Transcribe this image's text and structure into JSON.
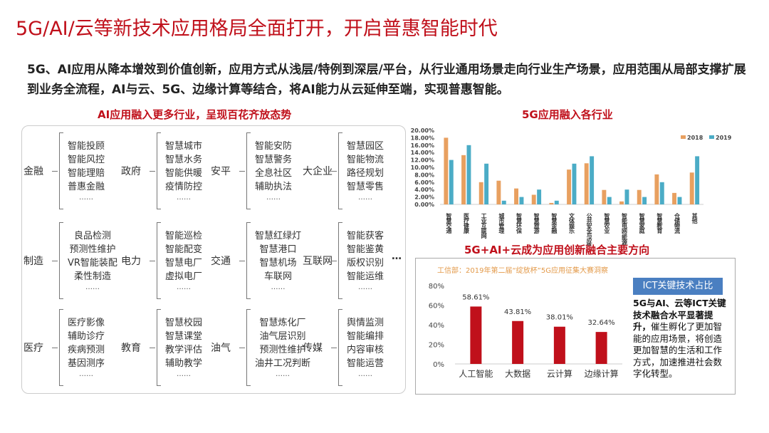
{
  "title": "5G/AI/云等新技术应用格局全面打开，开启普惠智能时代",
  "intro": "5G、AI应用从降本增效到价值创新，应用方式从浅层/特例到深层/平台，从行业通用场景走向行业生产场景，应用范围从局部支撑扩展到业务全流程，AI与云、5G、边缘计算等结合，将AI能力从云延伸至端，实现普惠智能。",
  "left_section": {
    "heading": "AI应用融入更多行业，呈现百花齐放态势",
    "more": "…",
    "groups": [
      {
        "label": "金融",
        "items": [
          "智能投顾",
          "智能风控",
          "智能理赔",
          "普惠金融"
        ],
        "dots": "……"
      },
      {
        "label": "政府",
        "items": [
          "智慧城市",
          "智慧水务",
          "智能供暖",
          "疫情防控"
        ],
        "dots": "……"
      },
      {
        "label": "安平",
        "items": [
          "智能安防",
          "智慧警务",
          "全息社区",
          "辅助执法"
        ],
        "dots": "……"
      },
      {
        "label": "大企业",
        "items": [
          "智慧园区",
          "智能物流",
          "路径规划",
          "智慧零售"
        ],
        "dots": "……"
      },
      {
        "label": "制造",
        "items": [
          "良品检测",
          "预测性维护",
          "VR智能装配",
          "柔性制造"
        ],
        "dots": "……"
      },
      {
        "label": "电力",
        "items": [
          "智能巡检",
          "智能配变",
          "智慧电厂",
          "虚拟电厂"
        ],
        "dots": "……"
      },
      {
        "label": "交通",
        "items": [
          "智慧红绿灯",
          "智慧港口",
          "智慧机场",
          "车联网"
        ],
        "dots": "……"
      },
      {
        "label": "互联网",
        "items": [
          "智能获客",
          "智能鉴黄",
          "版权识别",
          "智能运维"
        ],
        "dots": "……"
      },
      {
        "label": "医疗",
        "items": [
          "医疗影像",
          "辅助诊疗",
          "疾病预测",
          "基因测序"
        ],
        "dots": "……"
      },
      {
        "label": "教育",
        "items": [
          "智慧校园",
          "智慧课堂",
          "教学评估",
          "辅助教学"
        ],
        "dots": "……"
      },
      {
        "label": "油气",
        "items": [
          "智慧炼化厂",
          "油气层识别",
          "预测性维护",
          "油井工况判断"
        ],
        "dots": "……"
      },
      {
        "label": "传媒",
        "items": [
          "舆情监测",
          "智能编排",
          "内容审核",
          "智能运营"
        ],
        "dots": "……"
      }
    ]
  },
  "chart_data": [
    {
      "type": "bar",
      "title": "5G应用融入各行业",
      "categories": [
        "智慧交通",
        "医疗健康",
        "工业互联网",
        "城市管理",
        "智慧环保",
        "智慧旅游",
        "智慧金融",
        "文体娱乐",
        "公共安全与应急",
        "智慧农业",
        "智能电网/能源",
        "智慧家庭",
        "智慧教育",
        "仓储物流",
        "其他"
      ],
      "series": [
        {
          "name": "2018",
          "color": "#e8a060",
          "values": [
            18,
            13.3,
            6,
            6.4,
            4.3,
            2.6,
            0.4,
            9.4,
            11.1,
            3.9,
            0.8,
            3.9,
            8.1,
            3.1,
            8.6
          ]
        },
        {
          "name": "2019",
          "color": "#4bacc6",
          "values": [
            12,
            16,
            11,
            1,
            2,
            4,
            1,
            11,
            13,
            2,
            4,
            2,
            6,
            2,
            13
          ]
        }
      ],
      "yticks": [
        "0.00%",
        "2.00%",
        "4.00%",
        "6.00%",
        "8.00%",
        "10.00%",
        "12.00%",
        "14.00%",
        "16.00%",
        "18.00%",
        "20.00%"
      ],
      "ylim": [
        0,
        20
      ],
      "legend": "top-right"
    },
    {
      "type": "bar",
      "title": "5G+AI+云成为应用创新融合主要方向",
      "subtitle": "工信部：2019年第二届“绽放杯”5G应用征集大赛洞察",
      "categories": [
        "人工智能",
        "大数据",
        "云计算",
        "边缘计算"
      ],
      "values": [
        58.61,
        43.81,
        38.01,
        32.64
      ],
      "labels": [
        "58.61%",
        "43.81%",
        "38.01%",
        "32.64%"
      ],
      "yticks": [
        "0%",
        "20%",
        "40%",
        "60%",
        "80%"
      ],
      "ylim": [
        0,
        80
      ],
      "color": "#c0101b"
    }
  ],
  "ict": {
    "badge": "ICT关键技术占比",
    "bold": "5G与AI、云等ICT关键技术融合水平显著提升，",
    "text": "催生孵化了更加智能的应用场景，将创造更加智慧的生活和工作方式，加速推进社会数字化转型。"
  }
}
